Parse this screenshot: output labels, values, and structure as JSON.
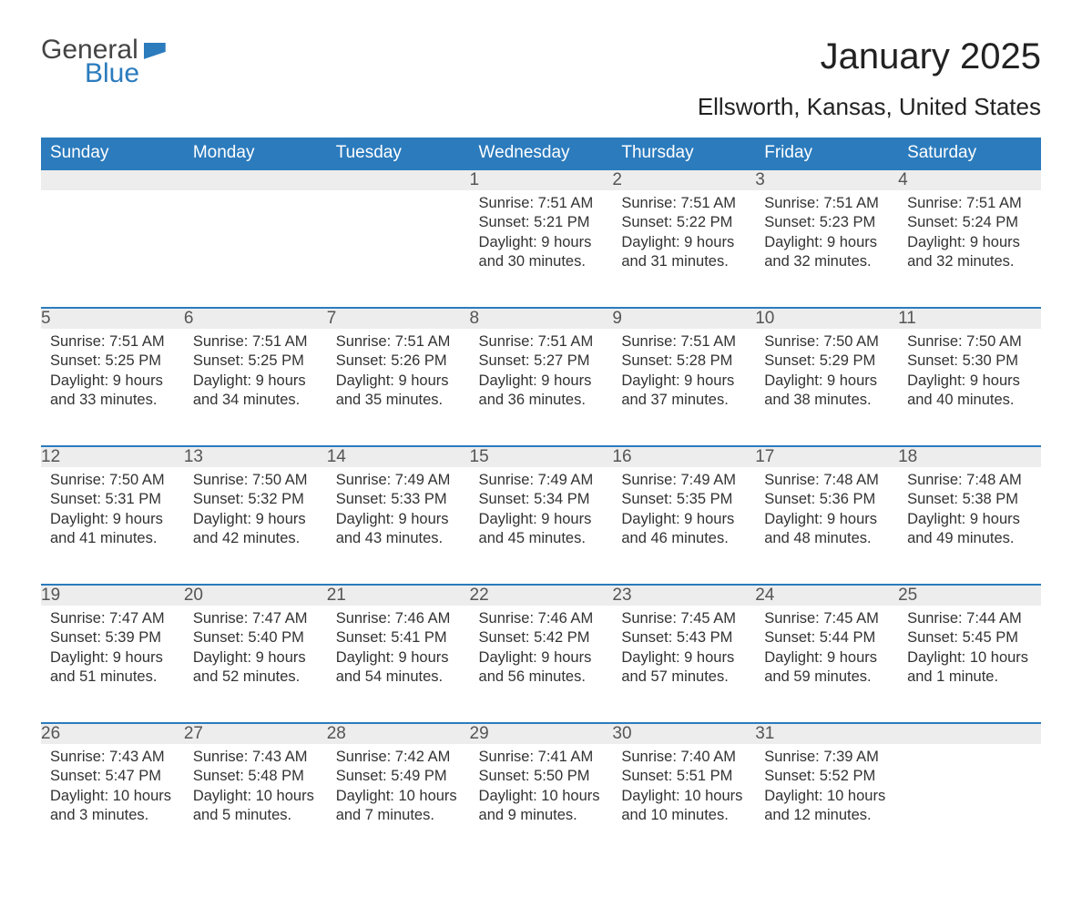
{
  "logo": {
    "word1": "General",
    "word2": "Blue"
  },
  "title": "January 2025",
  "subtitle": "Ellsworth, Kansas, United States",
  "weekdays": [
    "Sunday",
    "Monday",
    "Tuesday",
    "Wednesday",
    "Thursday",
    "Friday",
    "Saturday"
  ],
  "colors": {
    "header_bg": "#2b7bbd",
    "header_text": "#ffffff",
    "daynum_bg": "#ededed",
    "row_border": "#2b7bbd",
    "body_text": "#333333",
    "background": "#ffffff"
  },
  "fontsize": {
    "title": 40,
    "subtitle": 26,
    "weekday": 19,
    "daynum": 19,
    "content": 16.5
  },
  "weeks": [
    [
      null,
      null,
      null,
      {
        "n": "1",
        "sunrise": "7:51 AM",
        "sunset": "5:21 PM",
        "daylight": "9 hours and 30 minutes."
      },
      {
        "n": "2",
        "sunrise": "7:51 AM",
        "sunset": "5:22 PM",
        "daylight": "9 hours and 31 minutes."
      },
      {
        "n": "3",
        "sunrise": "7:51 AM",
        "sunset": "5:23 PM",
        "daylight": "9 hours and 32 minutes."
      },
      {
        "n": "4",
        "sunrise": "7:51 AM",
        "sunset": "5:24 PM",
        "daylight": "9 hours and 32 minutes."
      }
    ],
    [
      {
        "n": "5",
        "sunrise": "7:51 AM",
        "sunset": "5:25 PM",
        "daylight": "9 hours and 33 minutes."
      },
      {
        "n": "6",
        "sunrise": "7:51 AM",
        "sunset": "5:25 PM",
        "daylight": "9 hours and 34 minutes."
      },
      {
        "n": "7",
        "sunrise": "7:51 AM",
        "sunset": "5:26 PM",
        "daylight": "9 hours and 35 minutes."
      },
      {
        "n": "8",
        "sunrise": "7:51 AM",
        "sunset": "5:27 PM",
        "daylight": "9 hours and 36 minutes."
      },
      {
        "n": "9",
        "sunrise": "7:51 AM",
        "sunset": "5:28 PM",
        "daylight": "9 hours and 37 minutes."
      },
      {
        "n": "10",
        "sunrise": "7:50 AM",
        "sunset": "5:29 PM",
        "daylight": "9 hours and 38 minutes."
      },
      {
        "n": "11",
        "sunrise": "7:50 AM",
        "sunset": "5:30 PM",
        "daylight": "9 hours and 40 minutes."
      }
    ],
    [
      {
        "n": "12",
        "sunrise": "7:50 AM",
        "sunset": "5:31 PM",
        "daylight": "9 hours and 41 minutes."
      },
      {
        "n": "13",
        "sunrise": "7:50 AM",
        "sunset": "5:32 PM",
        "daylight": "9 hours and 42 minutes."
      },
      {
        "n": "14",
        "sunrise": "7:49 AM",
        "sunset": "5:33 PM",
        "daylight": "9 hours and 43 minutes."
      },
      {
        "n": "15",
        "sunrise": "7:49 AM",
        "sunset": "5:34 PM",
        "daylight": "9 hours and 45 minutes."
      },
      {
        "n": "16",
        "sunrise": "7:49 AM",
        "sunset": "5:35 PM",
        "daylight": "9 hours and 46 minutes."
      },
      {
        "n": "17",
        "sunrise": "7:48 AM",
        "sunset": "5:36 PM",
        "daylight": "9 hours and 48 minutes."
      },
      {
        "n": "18",
        "sunrise": "7:48 AM",
        "sunset": "5:38 PM",
        "daylight": "9 hours and 49 minutes."
      }
    ],
    [
      {
        "n": "19",
        "sunrise": "7:47 AM",
        "sunset": "5:39 PM",
        "daylight": "9 hours and 51 minutes."
      },
      {
        "n": "20",
        "sunrise": "7:47 AM",
        "sunset": "5:40 PM",
        "daylight": "9 hours and 52 minutes."
      },
      {
        "n": "21",
        "sunrise": "7:46 AM",
        "sunset": "5:41 PM",
        "daylight": "9 hours and 54 minutes."
      },
      {
        "n": "22",
        "sunrise": "7:46 AM",
        "sunset": "5:42 PM",
        "daylight": "9 hours and 56 minutes."
      },
      {
        "n": "23",
        "sunrise": "7:45 AM",
        "sunset": "5:43 PM",
        "daylight": "9 hours and 57 minutes."
      },
      {
        "n": "24",
        "sunrise": "7:45 AM",
        "sunset": "5:44 PM",
        "daylight": "9 hours and 59 minutes."
      },
      {
        "n": "25",
        "sunrise": "7:44 AM",
        "sunset": "5:45 PM",
        "daylight": "10 hours and 1 minute."
      }
    ],
    [
      {
        "n": "26",
        "sunrise": "7:43 AM",
        "sunset": "5:47 PM",
        "daylight": "10 hours and 3 minutes."
      },
      {
        "n": "27",
        "sunrise": "7:43 AM",
        "sunset": "5:48 PM",
        "daylight": "10 hours and 5 minutes."
      },
      {
        "n": "28",
        "sunrise": "7:42 AM",
        "sunset": "5:49 PM",
        "daylight": "10 hours and 7 minutes."
      },
      {
        "n": "29",
        "sunrise": "7:41 AM",
        "sunset": "5:50 PM",
        "daylight": "10 hours and 9 minutes."
      },
      {
        "n": "30",
        "sunrise": "7:40 AM",
        "sunset": "5:51 PM",
        "daylight": "10 hours and 10 minutes."
      },
      {
        "n": "31",
        "sunrise": "7:39 AM",
        "sunset": "5:52 PM",
        "daylight": "10 hours and 12 minutes."
      },
      null
    ]
  ],
  "labels": {
    "sunrise": "Sunrise: ",
    "sunset": "Sunset: ",
    "daylight": "Daylight: "
  }
}
